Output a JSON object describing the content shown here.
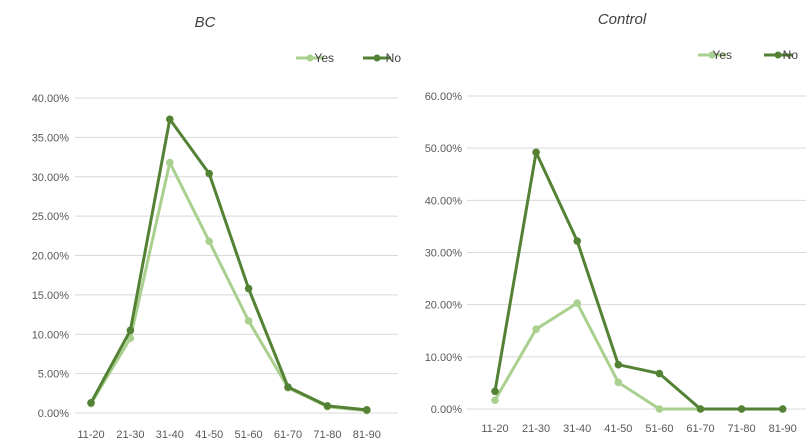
{
  "colors": {
    "yes": "#a9d08e",
    "no": "#548235"
  },
  "chart_data": [
    {
      "type": "line",
      "title": "BC",
      "categories": [
        "11-20",
        "21-30",
        "31-40",
        "41-50",
        "51-60",
        "61-70",
        "71-80",
        "81-90"
      ],
      "y_ticks": [
        "0.00%",
        "5.00%",
        "10.00%",
        "15.00%",
        "20.00%",
        "25.00%",
        "30.00%",
        "35.00%",
        "40.00%"
      ],
      "ylim": [
        0,
        40
      ],
      "legend": "top-right",
      "grid": true,
      "series": [
        {
          "name": "Yes",
          "values": [
            1.2,
            9.5,
            31.8,
            21.8,
            11.7,
            3.2,
            0.8,
            0.3
          ]
        },
        {
          "name": "No",
          "values": [
            1.3,
            10.5,
            37.3,
            30.4,
            15.8,
            3.3,
            0.9,
            0.4
          ]
        }
      ]
    },
    {
      "type": "line",
      "title": "Control",
      "categories": [
        "11-20",
        "21-30",
        "31-40",
        "41-50",
        "51-60",
        "61-70",
        "71-80",
        "81-90"
      ],
      "y_ticks": [
        "0.00%",
        "10.00%",
        "20.00%",
        "30.00%",
        "40.00%",
        "50.00%",
        "60.00%"
      ],
      "ylim": [
        0,
        60
      ],
      "legend": "top-right",
      "grid": true,
      "series": [
        {
          "name": "Yes",
          "values": [
            1.7,
            15.3,
            20.3,
            5.1,
            0.0,
            0.0,
            0.0,
            0.0
          ]
        },
        {
          "name": "No",
          "values": [
            3.4,
            49.2,
            32.2,
            8.5,
            6.8,
            0.0,
            0.0,
            0.0
          ]
        }
      ]
    }
  ]
}
